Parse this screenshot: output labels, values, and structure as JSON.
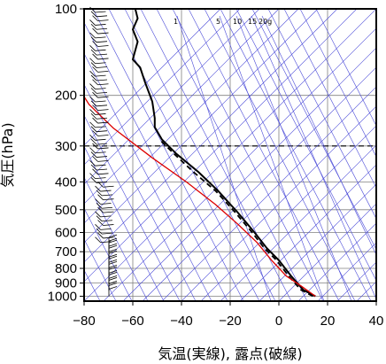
{
  "chart_data": {
    "type": "line",
    "title": "",
    "xlabel": "気温(実線), 露点(破線)",
    "ylabel": "気圧(hPa)",
    "x_ticks": [
      -80,
      -60,
      -40,
      -20,
      0,
      20,
      40
    ],
    "x_tick_labels": [
      "−80",
      "−60",
      "−40",
      "−20",
      "0",
      "20",
      "40"
    ],
    "y_ticks": [
      100,
      200,
      300,
      400,
      500,
      600,
      700,
      800,
      900,
      1000
    ],
    "y_tick_labels": [
      "100",
      "200",
      "300",
      "400",
      "500",
      "600",
      "700",
      "800",
      "900",
      "1000"
    ],
    "xlim": [
      -80,
      40
    ],
    "ylim": [
      1040,
      100
    ],
    "y_scale": "log",
    "tropopause_hPa": 300,
    "mixing_ratio_labels": [
      "1",
      "5",
      "10",
      "15",
      "20g"
    ],
    "series": [
      {
        "style": "solid-black",
        "points": [
          {
            "t": 15,
            "p": 1000
          },
          {
            "t": 10,
            "p": 950
          },
          {
            "t": 5,
            "p": 850
          },
          {
            "t": 0,
            "p": 750
          },
          {
            "t": -5,
            "p": 680
          },
          {
            "t": -10,
            "p": 600
          },
          {
            "t": -17,
            "p": 510
          },
          {
            "t": -25,
            "p": 430
          },
          {
            "t": -33,
            "p": 370
          },
          {
            "t": -42,
            "p": 320
          },
          {
            "t": -48,
            "p": 285
          },
          {
            "t": -51,
            "p": 258
          },
          {
            "t": -51,
            "p": 240
          },
          {
            "t": -52,
            "p": 210
          },
          {
            "t": -55,
            "p": 180
          },
          {
            "t": -57,
            "p": 160
          },
          {
            "t": -60,
            "p": 150
          },
          {
            "t": -58,
            "p": 130
          },
          {
            "t": -60,
            "p": 118
          },
          {
            "t": -58,
            "p": 108
          },
          {
            "t": -59,
            "p": 100
          }
        ]
      },
      {
        "style": "dashed-black",
        "points": [
          {
            "t": 14,
            "p": 1000
          },
          {
            "t": 9,
            "p": 950
          },
          {
            "t": 4,
            "p": 850
          },
          {
            "t": -1,
            "p": 750
          },
          {
            "t": -6,
            "p": 680
          },
          {
            "t": -11,
            "p": 600
          },
          {
            "t": -18,
            "p": 510
          },
          {
            "t": -26,
            "p": 430
          },
          {
            "t": -35,
            "p": 370
          },
          {
            "t": -43,
            "p": 320
          },
          {
            "t": -49,
            "p": 285
          }
        ]
      },
      {
        "style": "solid-red",
        "points": [
          {
            "t": 15,
            "p": 1000
          },
          {
            "t": 9,
            "p": 920
          },
          {
            "t": 3,
            "p": 850
          },
          {
            "t": -3,
            "p": 750
          },
          {
            "t": -9,
            "p": 650
          },
          {
            "t": -17,
            "p": 560
          },
          {
            "t": -26,
            "p": 480
          },
          {
            "t": -38,
            "p": 400
          },
          {
            "t": -52,
            "p": 330
          },
          {
            "t": -68,
            "p": 260
          },
          {
            "t": -78,
            "p": 215
          },
          {
            "t": -82,
            "p": 190
          }
        ]
      }
    ],
    "wind_barbs": {
      "count_upper": 55,
      "count_lower": 10
    }
  },
  "colors": {
    "temperature": "#000000",
    "dewpoint": "#000000",
    "parcel": "#dd0000",
    "guide_lines": "#4a4ad8",
    "grid": "#808080"
  }
}
